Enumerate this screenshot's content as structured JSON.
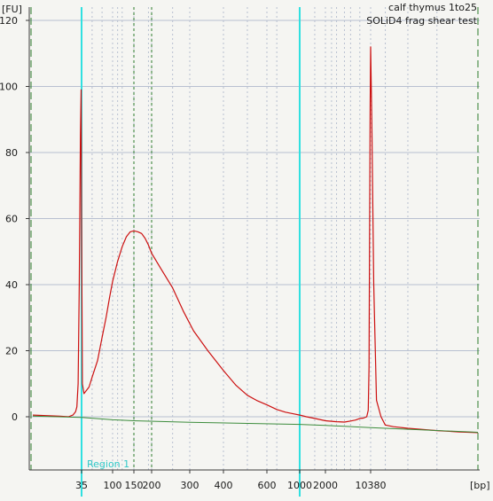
{
  "chart_data": {
    "type": "line",
    "title_lines": [
      "calf thymus 1to25",
      "SOLiD4 frag shear test"
    ],
    "ylabel": "[FU]",
    "xlabel": "[bp]",
    "ylim": [
      -16,
      123
    ],
    "y_ticks": [
      0,
      20,
      40,
      60,
      80,
      100,
      120
    ],
    "x_tick_labels": [
      {
        "label": "35",
        "bp": 35
      },
      {
        "label": "100",
        "bp": 100
      },
      {
        "label": "150",
        "bp": 150
      },
      {
        "label": "200",
        "bp": 200
      },
      {
        "label": "300",
        "bp": 300
      },
      {
        "label": "400",
        "bp": 400
      },
      {
        "label": "600",
        "bp": 600
      },
      {
        "label": "1000",
        "bp": 1000
      },
      {
        "label": "2000",
        "bp": 2000
      },
      {
        "label": "10380",
        "bp": 10380
      }
    ],
    "region_label": "Region 1",
    "region_bounds_bp": [
      35,
      1000
    ],
    "marker_lines_bp": [
      150,
      200
    ],
    "ladder_gridlines_bp": [
      35,
      50,
      70,
      100,
      110,
      120,
      150,
      190,
      200,
      250,
      300,
      400,
      500,
      600,
      700,
      1000,
      1500,
      2000,
      2500,
      3000,
      4000,
      5000,
      7000,
      10380,
      12000,
      15000,
      20000
    ],
    "series": [
      {
        "color": "#cc1010",
        "points": [
          [
            10,
            0.5
          ],
          [
            20,
            0.2
          ],
          [
            25,
            0
          ],
          [
            28,
            0.5
          ],
          [
            30,
            1.5
          ],
          [
            31,
            3
          ],
          [
            32,
            10
          ],
          [
            33,
            40
          ],
          [
            34,
            85
          ],
          [
            34.6,
            99
          ],
          [
            35,
            60
          ],
          [
            36,
            10
          ],
          [
            38,
            7
          ],
          [
            45,
            9
          ],
          [
            50,
            12
          ],
          [
            60,
            17
          ],
          [
            70,
            24
          ],
          [
            80,
            30
          ],
          [
            90,
            36
          ],
          [
            100,
            41
          ],
          [
            110,
            47
          ],
          [
            120,
            51.5
          ],
          [
            130,
            54.5
          ],
          [
            140,
            56
          ],
          [
            150,
            56.3
          ],
          [
            160,
            56
          ],
          [
            170,
            55.5
          ],
          [
            180,
            54
          ],
          [
            190,
            52
          ],
          [
            200,
            49.5
          ],
          [
            220,
            45
          ],
          [
            250,
            39
          ],
          [
            280,
            32
          ],
          [
            310,
            26
          ],
          [
            350,
            20
          ],
          [
            400,
            14
          ],
          [
            450,
            9.5
          ],
          [
            500,
            6.5
          ],
          [
            550,
            4.8
          ],
          [
            600,
            3.6
          ],
          [
            700,
            2.2
          ],
          [
            800,
            1.4
          ],
          [
            900,
            0.9
          ],
          [
            1000,
            0.5
          ],
          [
            1200,
            0
          ],
          [
            1500,
            -0.5
          ],
          [
            2000,
            -1.2
          ],
          [
            3000,
            -1.5
          ],
          [
            4000,
            -1.6
          ],
          [
            5000,
            -1.3
          ],
          [
            6000,
            -1
          ],
          [
            7000,
            -0.5
          ],
          [
            8000,
            -0.4
          ],
          [
            9000,
            0
          ],
          [
            9500,
            2
          ],
          [
            9800,
            15
          ],
          [
            10000,
            55
          ],
          [
            10200,
            95
          ],
          [
            10380,
            112
          ],
          [
            10500,
            90
          ],
          [
            10700,
            40
          ],
          [
            11000,
            5
          ],
          [
            11500,
            0
          ],
          [
            12000,
            -2.5
          ],
          [
            13000,
            -3
          ],
          [
            15000,
            -3.5
          ],
          [
            20000,
            -4.2
          ],
          [
            25000,
            -4.6
          ],
          [
            30000,
            -4.8
          ]
        ]
      },
      {
        "color": "#3c8c3c",
        "points": [
          [
            10,
            0.2
          ],
          [
            35,
            -0.2
          ],
          [
            100,
            -0.9
          ],
          [
            150,
            -1.2
          ],
          [
            300,
            -1.7
          ],
          [
            1000,
            -2.3
          ],
          [
            2000,
            -2.6
          ],
          [
            10380,
            -3.3
          ],
          [
            30000,
            -4.7
          ]
        ]
      }
    ],
    "grid": true,
    "colors": {
      "region_line": "#30e0e0",
      "marker_line": "#2a7a2a",
      "boundary_line": "#2a7a2a",
      "grid_line": "#b8c0d0",
      "plot_background": "#f5f5f2"
    }
  }
}
